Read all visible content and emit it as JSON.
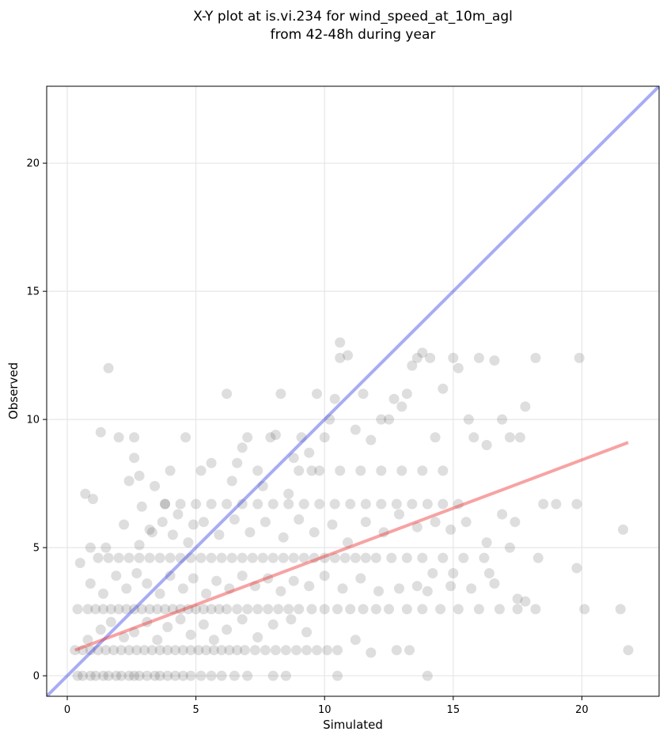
{
  "chart_data": {
    "type": "scatter",
    "title": "X-Y plot at is.vi.234 for wind_speed_at_10m_agl",
    "subtitle": "from 42-48h during year",
    "xlabel": "Simulated",
    "ylabel": "Observed",
    "xlim": [
      -0.8,
      23.0
    ],
    "ylim": [
      -0.8,
      23.0
    ],
    "xticks": [
      "0",
      "5",
      "10",
      "15",
      "20"
    ],
    "yticks": [
      "0",
      "5",
      "10",
      "15",
      "20"
    ],
    "grid": true,
    "colors": {
      "points": "#333333",
      "identity_line": "#3f48e6",
      "fit_line": "#ee3333"
    },
    "identity_line": {
      "x": [
        -0.8,
        23.0
      ],
      "y": [
        -0.8,
        23.0
      ]
    },
    "fit_line": {
      "x": [
        0.3,
        21.8
      ],
      "y": [
        1.0,
        9.1
      ]
    },
    "points": [
      [
        0.4,
        0
      ],
      [
        0.6,
        0
      ],
      [
        0.9,
        0
      ],
      [
        1.1,
        0
      ],
      [
        1.4,
        0
      ],
      [
        1.6,
        0
      ],
      [
        1.9,
        0
      ],
      [
        2.1,
        0
      ],
      [
        2.4,
        0
      ],
      [
        2.6,
        0
      ],
      [
        2.8,
        0
      ],
      [
        3.1,
        0
      ],
      [
        3.4,
        0
      ],
      [
        3.6,
        0
      ],
      [
        3.9,
        0
      ],
      [
        4.2,
        0
      ],
      [
        4.5,
        0
      ],
      [
        4.8,
        0
      ],
      [
        5.2,
        0
      ],
      [
        5.6,
        0
      ],
      [
        6.0,
        0
      ],
      [
        6.5,
        0
      ],
      [
        7.0,
        0
      ],
      [
        8.0,
        0
      ],
      [
        8.5,
        0
      ],
      [
        10.5,
        0
      ],
      [
        14.0,
        0
      ],
      [
        0.3,
        1
      ],
      [
        0.6,
        1
      ],
      [
        0.9,
        1
      ],
      [
        1.2,
        1
      ],
      [
        1.5,
        1
      ],
      [
        1.8,
        1
      ],
      [
        2.1,
        1
      ],
      [
        2.4,
        1
      ],
      [
        2.7,
        1
      ],
      [
        3.0,
        1
      ],
      [
        3.3,
        1
      ],
      [
        3.6,
        1
      ],
      [
        3.9,
        1
      ],
      [
        4.2,
        1
      ],
      [
        4.5,
        1
      ],
      [
        4.8,
        1
      ],
      [
        5.1,
        1
      ],
      [
        5.4,
        1
      ],
      [
        5.7,
        1
      ],
      [
        6.0,
        1
      ],
      [
        6.3,
        1
      ],
      [
        6.6,
        1
      ],
      [
        6.9,
        1
      ],
      [
        7.3,
        1
      ],
      [
        7.7,
        1
      ],
      [
        8.1,
        1
      ],
      [
        8.5,
        1
      ],
      [
        8.9,
        1
      ],
      [
        9.3,
        1
      ],
      [
        9.7,
        1
      ],
      [
        10.1,
        1
      ],
      [
        10.5,
        1
      ],
      [
        12.8,
        1
      ],
      [
        13.3,
        1
      ],
      [
        21.8,
        1
      ],
      [
        0.4,
        2.6
      ],
      [
        0.8,
        2.6
      ],
      [
        1.1,
        2.6
      ],
      [
        1.4,
        2.6
      ],
      [
        1.7,
        2.6
      ],
      [
        2.0,
        2.6
      ],
      [
        2.3,
        2.6
      ],
      [
        2.6,
        2.6
      ],
      [
        2.9,
        2.6
      ],
      [
        3.2,
        2.6
      ],
      [
        3.5,
        2.6
      ],
      [
        3.8,
        2.6
      ],
      [
        4.1,
        2.6
      ],
      [
        4.4,
        2.6
      ],
      [
        4.7,
        2.6
      ],
      [
        5.0,
        2.6
      ],
      [
        5.3,
        2.6
      ],
      [
        5.6,
        2.6
      ],
      [
        5.9,
        2.6
      ],
      [
        6.2,
        2.6
      ],
      [
        6.6,
        2.6
      ],
      [
        7.0,
        2.6
      ],
      [
        7.4,
        2.6
      ],
      [
        7.8,
        2.6
      ],
      [
        8.2,
        2.6
      ],
      [
        8.6,
        2.6
      ],
      [
        9.0,
        2.6
      ],
      [
        9.5,
        2.6
      ],
      [
        10.0,
        2.6
      ],
      [
        10.5,
        2.6
      ],
      [
        11.0,
        2.6
      ],
      [
        11.5,
        2.6
      ],
      [
        12.0,
        2.6
      ],
      [
        12.5,
        2.6
      ],
      [
        13.2,
        2.6
      ],
      [
        13.8,
        2.6
      ],
      [
        14.5,
        2.6
      ],
      [
        15.2,
        2.6
      ],
      [
        16.0,
        2.6
      ],
      [
        16.8,
        2.6
      ],
      [
        17.5,
        2.6
      ],
      [
        18.2,
        2.6
      ],
      [
        21.5,
        2.6
      ],
      [
        20.1,
        2.6
      ],
      [
        1.2,
        4.6
      ],
      [
        1.6,
        4.6
      ],
      [
        2.0,
        4.6
      ],
      [
        2.4,
        4.6
      ],
      [
        2.8,
        4.6
      ],
      [
        3.2,
        4.6
      ],
      [
        3.6,
        4.6
      ],
      [
        4.0,
        4.6
      ],
      [
        4.4,
        4.6
      ],
      [
        4.8,
        4.6
      ],
      [
        5.2,
        4.6
      ],
      [
        5.6,
        4.6
      ],
      [
        6.0,
        4.6
      ],
      [
        6.4,
        4.6
      ],
      [
        6.8,
        4.6
      ],
      [
        7.2,
        4.6
      ],
      [
        7.6,
        4.6
      ],
      [
        8.0,
        4.6
      ],
      [
        8.4,
        4.6
      ],
      [
        8.8,
        4.6
      ],
      [
        9.2,
        4.6
      ],
      [
        9.6,
        4.6
      ],
      [
        10.0,
        4.6
      ],
      [
        10.4,
        4.6
      ],
      [
        10.8,
        4.6
      ],
      [
        11.2,
        4.6
      ],
      [
        11.6,
        4.6
      ],
      [
        12.0,
        4.6
      ],
      [
        12.6,
        4.6
      ],
      [
        13.2,
        4.6
      ],
      [
        13.8,
        4.6
      ],
      [
        14.6,
        4.6
      ],
      [
        15.4,
        4.6
      ],
      [
        16.2,
        4.6
      ],
      [
        18.3,
        4.6
      ],
      [
        3.8,
        6.7
      ],
      [
        4.4,
        6.7
      ],
      [
        5.0,
        6.7
      ],
      [
        5.6,
        6.7
      ],
      [
        6.2,
        6.7
      ],
      [
        6.8,
        6.7
      ],
      [
        7.4,
        6.7
      ],
      [
        8.0,
        6.7
      ],
      [
        8.6,
        6.7
      ],
      [
        9.2,
        6.7
      ],
      [
        9.8,
        6.7
      ],
      [
        10.4,
        6.7
      ],
      [
        11.0,
        6.7
      ],
      [
        11.6,
        6.7
      ],
      [
        12.2,
        6.7
      ],
      [
        12.8,
        6.7
      ],
      [
        13.4,
        6.7
      ],
      [
        14.0,
        6.7
      ],
      [
        14.6,
        6.7
      ],
      [
        15.2,
        6.7
      ],
      [
        18.5,
        6.7
      ],
      [
        19.0,
        6.7
      ],
      [
        19.8,
        6.7
      ],
      [
        9.0,
        8.0
      ],
      [
        9.8,
        8.0
      ],
      [
        10.6,
        8.0
      ],
      [
        11.4,
        8.0
      ],
      [
        12.2,
        8.0
      ],
      [
        13.0,
        8.0
      ],
      [
        13.8,
        8.0
      ],
      [
        14.6,
        8.0
      ],
      [
        0.8,
        1.4
      ],
      [
        1.3,
        1.8
      ],
      [
        1.7,
        2.1
      ],
      [
        2.2,
        1.5
      ],
      [
        2.6,
        1.7
      ],
      [
        3.1,
        2.1
      ],
      [
        3.5,
        1.4
      ],
      [
        3.9,
        1.9
      ],
      [
        4.4,
        2.2
      ],
      [
        4.8,
        1.6
      ],
      [
        5.3,
        2.0
      ],
      [
        5.7,
        1.4
      ],
      [
        6.2,
        1.8
      ],
      [
        6.8,
        2.2
      ],
      [
        7.4,
        1.5
      ],
      [
        8.0,
        2.0
      ],
      [
        8.7,
        2.2
      ],
      [
        9.3,
        1.7
      ],
      [
        11.2,
        1.4
      ],
      [
        11.8,
        0.9
      ],
      [
        0.9,
        3.6
      ],
      [
        1.4,
        3.2
      ],
      [
        1.9,
        3.9
      ],
      [
        2.3,
        3.4
      ],
      [
        2.7,
        4.0
      ],
      [
        3.1,
        3.6
      ],
      [
        3.6,
        3.2
      ],
      [
        4.0,
        3.9
      ],
      [
        4.5,
        3.4
      ],
      [
        4.9,
        3.8
      ],
      [
        5.4,
        3.2
      ],
      [
        5.8,
        3.7
      ],
      [
        6.3,
        3.4
      ],
      [
        6.8,
        3.9
      ],
      [
        7.3,
        3.5
      ],
      [
        7.8,
        3.8
      ],
      [
        8.3,
        3.3
      ],
      [
        8.8,
        3.7
      ],
      [
        9.4,
        3.5
      ],
      [
        10.0,
        3.9
      ],
      [
        10.7,
        3.4
      ],
      [
        11.4,
        3.8
      ],
      [
        12.1,
        3.3
      ],
      [
        12.9,
        3.4
      ],
      [
        13.6,
        3.5
      ],
      [
        14.2,
        4.0
      ],
      [
        14.9,
        3.5
      ],
      [
        15.7,
        3.4
      ],
      [
        16.6,
        3.6
      ],
      [
        17.5,
        3.0
      ],
      [
        17.8,
        2.9
      ],
      [
        0.7,
        7.1
      ],
      [
        1.0,
        6.9
      ],
      [
        1.3,
        9.5
      ],
      [
        1.6,
        12.0
      ],
      [
        2.0,
        9.3
      ],
      [
        2.4,
        7.6
      ],
      [
        2.6,
        9.3
      ],
      [
        2.6,
        8.5
      ],
      [
        2.8,
        7.8
      ],
      [
        2.9,
        6.6
      ],
      [
        3.2,
        5.7
      ],
      [
        3.4,
        7.4
      ],
      [
        3.8,
        6.7
      ],
      [
        4.0,
        8.0
      ],
      [
        4.3,
        6.3
      ],
      [
        4.6,
        9.3
      ],
      [
        4.9,
        5.9
      ],
      [
        5.2,
        8.0
      ],
      [
        5.6,
        8.3
      ],
      [
        6.2,
        11.0
      ],
      [
        6.4,
        7.6
      ],
      [
        6.6,
        8.3
      ],
      [
        6.8,
        8.9
      ],
      [
        7.0,
        9.3
      ],
      [
        7.4,
        8.0
      ],
      [
        7.6,
        7.4
      ],
      [
        7.9,
        9.3
      ],
      [
        8.1,
        9.4
      ],
      [
        8.3,
        11.0
      ],
      [
        8.6,
        7.1
      ],
      [
        8.8,
        8.5
      ],
      [
        9.1,
        9.3
      ],
      [
        9.4,
        8.7
      ],
      [
        9.7,
        11.0
      ],
      [
        10.0,
        9.3
      ],
      [
        10.2,
        10.0
      ],
      [
        10.6,
        12.4
      ],
      [
        10.9,
        12.5
      ],
      [
        11.2,
        9.6
      ],
      [
        11.5,
        11.0
      ],
      [
        11.8,
        9.2
      ],
      [
        12.2,
        10.0
      ],
      [
        12.5,
        10.0
      ],
      [
        12.7,
        10.8
      ],
      [
        13.0,
        10.5
      ],
      [
        13.2,
        11.0
      ],
      [
        13.4,
        12.1
      ],
      [
        13.6,
        12.4
      ],
      [
        13.8,
        12.6
      ],
      [
        14.1,
        12.4
      ],
      [
        14.3,
        9.3
      ],
      [
        14.6,
        11.2
      ],
      [
        15.0,
        12.4
      ],
      [
        15.2,
        12.0
      ],
      [
        15.6,
        10.0
      ],
      [
        16.0,
        12.4
      ],
      [
        16.3,
        9.0
      ],
      [
        16.6,
        12.3
      ],
      [
        16.9,
        10.0
      ],
      [
        17.2,
        9.3
      ],
      [
        17.8,
        10.5
      ],
      [
        18.2,
        12.4
      ],
      [
        19.9,
        12.4
      ],
      [
        10.4,
        10.8
      ],
      [
        10.6,
        13.0
      ],
      [
        9.5,
        8.0
      ],
      [
        15.8,
        9.3
      ],
      [
        17.6,
        9.3
      ],
      [
        0.5,
        4.4
      ],
      [
        0.9,
        5.0
      ],
      [
        1.5,
        5.0
      ],
      [
        2.2,
        5.9
      ],
      [
        2.8,
        5.1
      ],
      [
        3.3,
        5.6
      ],
      [
        3.7,
        6.0
      ],
      [
        4.1,
        5.5
      ],
      [
        4.7,
        5.2
      ],
      [
        5.3,
        6.0
      ],
      [
        5.9,
        5.5
      ],
      [
        6.5,
        6.1
      ],
      [
        7.1,
        5.6
      ],
      [
        7.7,
        6.0
      ],
      [
        8.4,
        5.4
      ],
      [
        9.0,
        6.1
      ],
      [
        9.6,
        5.6
      ],
      [
        10.3,
        5.9
      ],
      [
        10.9,
        5.2
      ],
      [
        11.6,
        6.0
      ],
      [
        12.3,
        5.6
      ],
      [
        12.9,
        6.3
      ],
      [
        13.6,
        5.8
      ],
      [
        14.3,
        6.0
      ],
      [
        14.9,
        5.7
      ],
      [
        15.5,
        6.0
      ],
      [
        16.3,
        5.2
      ],
      [
        16.9,
        6.3
      ],
      [
        17.4,
        6.0
      ],
      [
        17.2,
        5.0
      ],
      [
        16.4,
        4.0
      ],
      [
        15.0,
        4.0
      ],
      [
        14.0,
        3.3
      ],
      [
        19.8,
        4.2
      ],
      [
        21.6,
        5.7
      ]
    ]
  }
}
